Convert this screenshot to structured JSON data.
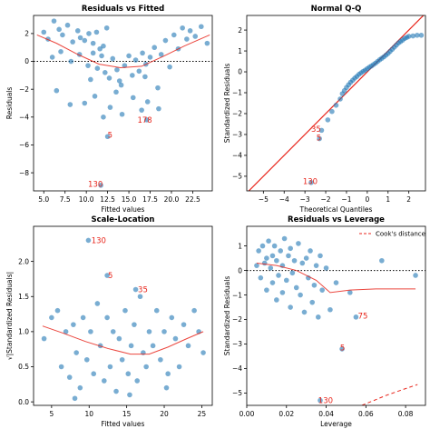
{
  "chart_data": [
    {
      "type": "scatter",
      "title": "Residuals vs Fitted",
      "xlabel": "Fitted values",
      "ylabel": "Residuals",
      "xlim": [
        3.8,
        24.8
      ],
      "ylim": [
        -9.3,
        3.3
      ],
      "xticks": [
        5,
        7.5,
        10,
        12.5,
        15,
        17.5,
        20,
        22.5
      ],
      "xtick_labels": [
        "5.0",
        "7.5",
        "10.0",
        "12.5",
        "15.0",
        "17.5",
        "20.0",
        "22.5"
      ],
      "yticks": [
        2,
        0,
        -2,
        -4,
        -6,
        -8
      ],
      "ytick_labels": [
        "2",
        "0",
        "−2",
        "−4",
        "−6",
        "−8"
      ],
      "refline": {
        "y": 0,
        "style": "dotted",
        "color": "#000000"
      },
      "point_color": "#1f77b4",
      "smooth_color": "#e8261c",
      "points": [
        [
          5.0,
          2.1
        ],
        [
          5.5,
          1.6
        ],
        [
          6.2,
          2.9
        ],
        [
          6.8,
          2.3
        ],
        [
          7.2,
          1.9
        ],
        [
          7.8,
          2.6
        ],
        [
          8.4,
          1.4
        ],
        [
          9.0,
          2.2
        ],
        [
          9.3,
          1.7
        ],
        [
          9.8,
          1.5
        ],
        [
          10.3,
          2.0
        ],
        [
          10.8,
          1.3
        ],
        [
          11.2,
          2.1
        ],
        [
          11.6,
          0.9
        ],
        [
          12.0,
          1.1
        ],
        [
          12.4,
          2.4
        ],
        [
          6.0,
          0.3
        ],
        [
          7.0,
          0.7
        ],
        [
          8.2,
          0.0
        ],
        [
          9.2,
          0.5
        ],
        [
          10.2,
          -0.3
        ],
        [
          10.8,
          0.6
        ],
        [
          11.3,
          -0.5
        ],
        [
          11.8,
          0.4
        ],
        [
          12.2,
          -0.8
        ],
        [
          12.7,
          -1.2
        ],
        [
          13.1,
          0.2
        ],
        [
          13.6,
          -0.6
        ],
        [
          14.1,
          -1.7
        ],
        [
          14.5,
          -0.3
        ],
        [
          15.0,
          0.4
        ],
        [
          15.4,
          -1.0
        ],
        [
          15.8,
          0.1
        ],
        [
          16.2,
          -0.7
        ],
        [
          16.6,
          0.6
        ],
        [
          17.0,
          -0.2
        ],
        [
          17.5,
          0.3
        ],
        [
          18.0,
          1.0
        ],
        [
          18.4,
          -1.9
        ],
        [
          18.8,
          0.5
        ],
        [
          19.3,
          1.5
        ],
        [
          19.8,
          -0.4
        ],
        [
          20.3,
          1.9
        ],
        [
          20.8,
          0.9
        ],
        [
          21.3,
          2.4
        ],
        [
          21.8,
          1.6
        ],
        [
          22.2,
          2.2
        ],
        [
          22.8,
          1.8
        ],
        [
          23.5,
          2.5
        ],
        [
          24.2,
          1.3
        ],
        [
          6.5,
          -2.1
        ],
        [
          9.8,
          -3.0
        ],
        [
          11.0,
          -2.5
        ],
        [
          12.0,
          -4.0
        ],
        [
          12.8,
          -3.3
        ],
        [
          13.5,
          -2.2
        ],
        [
          14.2,
          -3.8
        ],
        [
          15.5,
          -2.6
        ],
        [
          16.5,
          -3.5
        ],
        [
          17.2,
          -2.9
        ],
        [
          18.5,
          -3.4
        ],
        [
          8.1,
          -3.1
        ],
        [
          10.5,
          -1.3
        ],
        [
          13.9,
          -1.4
        ],
        [
          16.9,
          -1.1
        ],
        [
          12.5,
          -5.4
        ],
        [
          17.1,
          -4.2
        ],
        [
          11.7,
          -8.9
        ]
      ],
      "smooth": [
        [
          4.2,
          1.9
        ],
        [
          6.5,
          1.3
        ],
        [
          9.0,
          0.5
        ],
        [
          11.5,
          -0.2
        ],
        [
          14.0,
          -0.45
        ],
        [
          16.5,
          -0.35
        ],
        [
          19.0,
          0.35
        ],
        [
          21.5,
          1.1
        ],
        [
          24.5,
          1.9
        ]
      ],
      "labels": [
        {
          "text": "5",
          "x": 12.5,
          "y": -5.3
        },
        {
          "text": "178",
          "x": 16.0,
          "y": -4.2
        },
        {
          "text": "130",
          "x": 10.2,
          "y": -8.8
        }
      ]
    },
    {
      "type": "scatter",
      "title": "Normal Q-Q",
      "xlabel": "Theoretical Quantiles",
      "ylabel": "Standardized Residuals",
      "xlim": [
        -5.8,
        2.8
      ],
      "ylim": [
        -5.7,
        2.7
      ],
      "xticks": [
        -5,
        -4,
        -3,
        -2,
        -1,
        0,
        1,
        2
      ],
      "xtick_labels": [
        "−5",
        "−4",
        "−3",
        "−2",
        "−1",
        "0",
        "1",
        "2"
      ],
      "yticks": [
        2,
        1,
        0,
        -1,
        -2,
        -3,
        -4,
        -5
      ],
      "ytick_labels": [
        "2",
        "1",
        "0",
        "−1",
        "−2",
        "−3",
        "−4",
        "−5"
      ],
      "refline": {
        "type": "diagonal",
        "color": "#e8261c"
      },
      "point_color": "#1f77b4",
      "points": [
        [
          -2.7,
          -5.3
        ],
        [
          -2.3,
          -3.2
        ],
        [
          -2.2,
          -2.8
        ],
        [
          -1.9,
          -2.3
        ],
        [
          -1.7,
          -1.9
        ],
        [
          -1.5,
          -1.6
        ],
        [
          -1.3,
          -1.3
        ],
        [
          -1.2,
          -1.05
        ],
        [
          -1.1,
          -0.9
        ],
        [
          -1.0,
          -0.75
        ],
        [
          -0.9,
          -0.62
        ],
        [
          -0.8,
          -0.5
        ],
        [
          -0.7,
          -0.4
        ],
        [
          -0.6,
          -0.3
        ],
        [
          -0.5,
          -0.22
        ],
        [
          -0.4,
          -0.12
        ],
        [
          -0.3,
          -0.05
        ],
        [
          -0.2,
          0.02
        ],
        [
          -0.1,
          0.08
        ],
        [
          0.0,
          0.15
        ],
        [
          0.1,
          0.22
        ],
        [
          0.2,
          0.28
        ],
        [
          0.3,
          0.35
        ],
        [
          0.4,
          0.42
        ],
        [
          0.5,
          0.5
        ],
        [
          0.6,
          0.58
        ],
        [
          0.7,
          0.65
        ],
        [
          0.8,
          0.72
        ],
        [
          0.9,
          0.8
        ],
        [
          1.0,
          0.88
        ],
        [
          1.1,
          0.98
        ],
        [
          1.2,
          1.08
        ],
        [
          1.3,
          1.18
        ],
        [
          1.4,
          1.28
        ],
        [
          1.5,
          1.38
        ],
        [
          1.6,
          1.45
        ],
        [
          1.7,
          1.52
        ],
        [
          1.8,
          1.6
        ],
        [
          1.9,
          1.65
        ],
        [
          2.0,
          1.7
        ],
        [
          2.2,
          1.72
        ],
        [
          2.4,
          1.75
        ],
        [
          2.6,
          1.75
        ]
      ],
      "labels": [
        {
          "text": "35",
          "x": -2.7,
          "y": -2.75
        },
        {
          "text": "5",
          "x": -2.45,
          "y": -3.15
        },
        {
          "text": "130",
          "x": -3.1,
          "y": -5.25
        }
      ]
    },
    {
      "type": "scatter",
      "title": "Scale-Location",
      "xlabel": "Fitted values",
      "ylabel": "√|Standardized Residuals|",
      "xlim": [
        2.6,
        26.4
      ],
      "ylim": [
        -0.05,
        2.5
      ],
      "xticks": [
        5,
        10,
        15,
        20,
        25
      ],
      "xtick_labels": [
        "5",
        "10",
        "15",
        "20",
        "25"
      ],
      "yticks": [
        0.0,
        0.5,
        1.0,
        1.5,
        2.0
      ],
      "ytick_labels": [
        "0.0",
        "0.5",
        "1.0",
        "1.5",
        "2.0"
      ],
      "point_color": "#1f77b4",
      "smooth_color": "#e8261c",
      "points": [
        [
          4.0,
          0.9
        ],
        [
          5.0,
          1.2
        ],
        [
          5.8,
          1.3
        ],
        [
          6.3,
          0.5
        ],
        [
          6.9,
          1.0
        ],
        [
          7.4,
          0.35
        ],
        [
          7.9,
          1.1
        ],
        [
          8.3,
          0.7
        ],
        [
          8.8,
          0.2
        ],
        [
          9.2,
          1.2
        ],
        [
          9.7,
          0.6
        ],
        [
          10.2,
          1.0
        ],
        [
          10.6,
          0.4
        ],
        [
          11.1,
          1.4
        ],
        [
          11.5,
          0.8
        ],
        [
          12.0,
          0.3
        ],
        [
          12.4,
          1.2
        ],
        [
          12.8,
          0.5
        ],
        [
          13.2,
          1.0
        ],
        [
          13.6,
          0.15
        ],
        [
          14.0,
          0.9
        ],
        [
          14.4,
          0.6
        ],
        [
          14.8,
          1.3
        ],
        [
          15.2,
          0.4
        ],
        [
          15.6,
          0.8
        ],
        [
          16.0,
          1.1
        ],
        [
          16.4,
          0.3
        ],
        [
          16.8,
          1.5
        ],
        [
          17.2,
          0.7
        ],
        [
          17.6,
          0.5
        ],
        [
          18.0,
          1.0
        ],
        [
          18.5,
          0.8
        ],
        [
          19.0,
          1.3
        ],
        [
          19.5,
          0.6
        ],
        [
          20.0,
          1.0
        ],
        [
          20.5,
          0.4
        ],
        [
          21.0,
          1.2
        ],
        [
          21.5,
          0.9
        ],
        [
          22.0,
          0.5
        ],
        [
          22.6,
          1.1
        ],
        [
          23.2,
          0.8
        ],
        [
          24.0,
          1.3
        ],
        [
          24.6,
          1.0
        ],
        [
          25.2,
          0.7
        ],
        [
          9.9,
          2.3
        ],
        [
          12.4,
          1.8
        ],
        [
          16.2,
          1.6
        ],
        [
          8.1,
          0.05
        ],
        [
          15.4,
          0.1
        ],
        [
          20.3,
          0.2
        ]
      ],
      "smooth": [
        [
          3.8,
          1.08
        ],
        [
          6.5,
          0.98
        ],
        [
          9.5,
          0.86
        ],
        [
          12.5,
          0.76
        ],
        [
          15.5,
          0.68
        ],
        [
          18.0,
          0.68
        ],
        [
          20.5,
          0.78
        ],
        [
          23.0,
          0.9
        ],
        [
          25.2,
          1.0
        ]
      ],
      "labels": [
        {
          "text": "130",
          "x": 10.3,
          "y": 2.3
        },
        {
          "text": "5",
          "x": 12.5,
          "y": 1.8
        },
        {
          "text": "35",
          "x": 16.5,
          "y": 1.6
        }
      ]
    },
    {
      "type": "scatter",
      "title": "Residuals vs Leverage",
      "xlabel": "Leverage",
      "ylabel": "Standardized Residuals",
      "xlim": [
        0.0,
        0.09
      ],
      "ylim": [
        -5.5,
        1.8
      ],
      "xticks": [
        0.0,
        0.02,
        0.04,
        0.06,
        0.08
      ],
      "xtick_labels": [
        "0.00",
        "0.02",
        "0.04",
        "0.06",
        "0.08"
      ],
      "yticks": [
        1,
        0,
        -1,
        -2,
        -3,
        -4,
        -5
      ],
      "ytick_labels": [
        "1",
        "0",
        "−1",
        "−2",
        "−3",
        "−4",
        "−5"
      ],
      "refline": {
        "y": 0,
        "style": "dotted",
        "color": "#000000"
      },
      "legend": {
        "position": "top-right",
        "entries": [
          "Cook's distance"
        ]
      },
      "point_color": "#1f77b4",
      "smooth_color": "#e8261c",
      "cooks_color": "#e8261c",
      "points": [
        [
          0.005,
          0.2
        ],
        [
          0.006,
          0.8
        ],
        [
          0.007,
          -0.3
        ],
        [
          0.008,
          1.0
        ],
        [
          0.009,
          0.3
        ],
        [
          0.01,
          0.5
        ],
        [
          0.01,
          -0.8
        ],
        [
          0.011,
          1.2
        ],
        [
          0.012,
          0.1
        ],
        [
          0.013,
          0.6
        ],
        [
          0.013,
          -0.5
        ],
        [
          0.014,
          1.0
        ],
        [
          0.015,
          -1.2
        ],
        [
          0.015,
          0.4
        ],
        [
          0.016,
          -0.2
        ],
        [
          0.017,
          0.8
        ],
        [
          0.018,
          -0.9
        ],
        [
          0.018,
          0.2
        ],
        [
          0.019,
          1.3
        ],
        [
          0.02,
          -0.4
        ],
        [
          0.021,
          0.6
        ],
        [
          0.022,
          -1.5
        ],
        [
          0.022,
          0.9
        ],
        [
          0.023,
          -0.1
        ],
        [
          0.024,
          0.4
        ],
        [
          0.025,
          -0.7
        ],
        [
          0.026,
          1.1
        ],
        [
          0.027,
          -1.0
        ],
        [
          0.028,
          0.3
        ],
        [
          0.029,
          -1.7
        ],
        [
          0.03,
          0.5
        ],
        [
          0.031,
          -0.3
        ],
        [
          0.032,
          0.8
        ],
        [
          0.033,
          -1.3
        ],
        [
          0.034,
          -0.6
        ],
        [
          0.035,
          0.2
        ],
        [
          0.036,
          -1.9
        ],
        [
          0.037,
          0.6
        ],
        [
          0.038,
          -0.8
        ],
        [
          0.04,
          0.1
        ],
        [
          0.042,
          -1.6
        ],
        [
          0.045,
          -0.5
        ],
        [
          0.048,
          -3.2
        ],
        [
          0.055,
          -1.9
        ],
        [
          0.037,
          -5.3
        ],
        [
          0.068,
          0.4
        ],
        [
          0.085,
          -0.2
        ],
        [
          0.052,
          -0.9
        ]
      ],
      "smooth": [
        [
          0.005,
          0.3
        ],
        [
          0.015,
          0.2
        ],
        [
          0.025,
          0.0
        ],
        [
          0.035,
          -0.4
        ],
        [
          0.042,
          -0.9
        ],
        [
          0.052,
          -0.8
        ],
        [
          0.065,
          -0.75
        ],
        [
          0.085,
          -0.75
        ]
      ],
      "cooks": [
        [
          0.058,
          -5.5
        ],
        [
          0.064,
          -5.3
        ],
        [
          0.07,
          -5.1
        ],
        [
          0.077,
          -4.9
        ],
        [
          0.086,
          -4.65
        ]
      ],
      "labels": [
        {
          "text": "75",
          "x": 0.056,
          "y": -1.85
        },
        {
          "text": "5",
          "x": 0.047,
          "y": -3.15
        },
        {
          "text": "130",
          "x": 0.036,
          "y": -5.3
        }
      ]
    }
  ]
}
